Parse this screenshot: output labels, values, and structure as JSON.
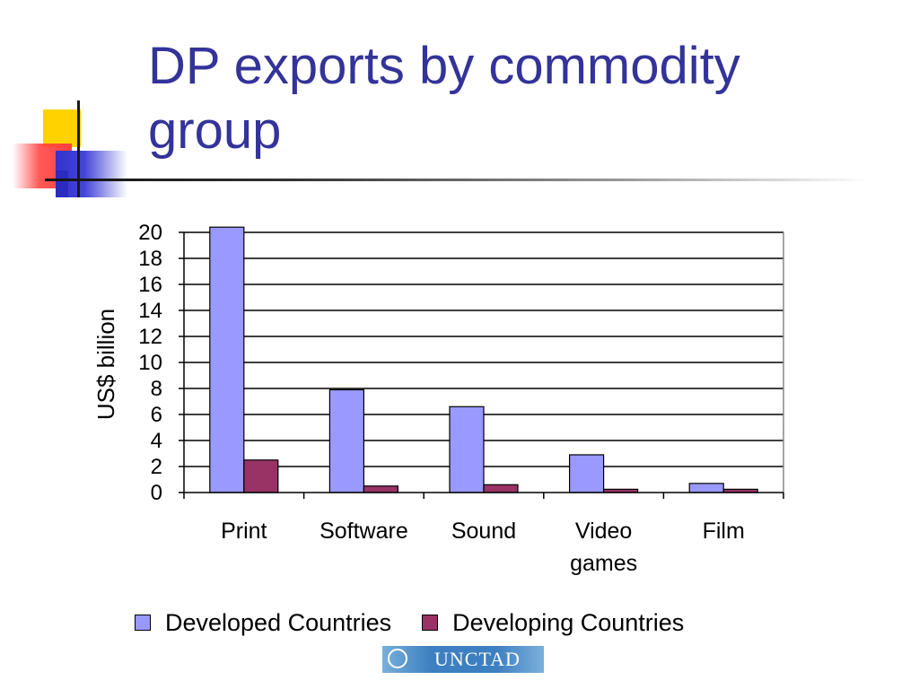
{
  "slide": {
    "title": "DP exports by commodity group",
    "logo_text": "UNCTAD"
  },
  "colors": {
    "title": "#333399",
    "developed": "#9999ff",
    "developing": "#993366"
  },
  "chart_data": {
    "type": "bar",
    "categories": [
      "Print",
      "Software",
      "Sound",
      "Video games",
      "Film"
    ],
    "category_lines": [
      [
        "Print"
      ],
      [
        "Software"
      ],
      [
        "Sound"
      ],
      [
        "Video",
        "games"
      ],
      [
        "Film"
      ]
    ],
    "series": [
      {
        "name": "Developed Countries",
        "color": "#9999ff",
        "values": [
          20.4,
          7.9,
          6.6,
          2.9,
          0.7
        ]
      },
      {
        "name": "Developing Countries",
        "color": "#993366",
        "values": [
          2.5,
          0.5,
          0.6,
          0.25,
          0.25
        ]
      }
    ],
    "ylabel": "US$ billion",
    "xlabel": "",
    "ylim": [
      0,
      20
    ],
    "yticks": [
      0,
      2,
      4,
      6,
      8,
      10,
      12,
      14,
      16,
      18,
      20
    ],
    "grid": true,
    "legend_position": "bottom"
  }
}
